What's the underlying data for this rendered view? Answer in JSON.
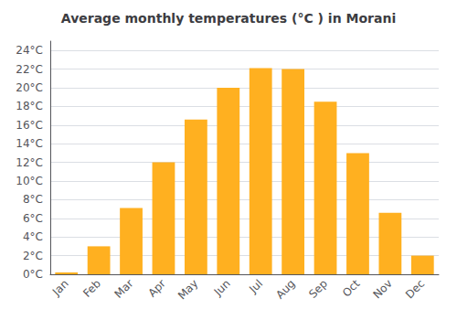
{
  "chart_data": {
    "type": "bar",
    "title": "Average monthly temperatures (°C ) in Morani",
    "categories": [
      "Jan",
      "Feb",
      "Mar",
      "Apr",
      "May",
      "Jun",
      "Jul",
      "Aug",
      "Sep",
      "Oct",
      "Nov",
      "Dec"
    ],
    "values": [
      0.2,
      3.0,
      7.1,
      12.0,
      16.6,
      20.0,
      22.1,
      22.0,
      18.5,
      13.0,
      6.6,
      2.0
    ],
    "color": "#FFB020",
    "ylim": [
      0,
      25
    ],
    "yticks": [
      {
        "value": 0,
        "label": "0°C"
      },
      {
        "value": 2,
        "label": "2°C"
      },
      {
        "value": 4,
        "label": "4°C"
      },
      {
        "value": 6,
        "label": "6°C"
      },
      {
        "value": 8,
        "label": "8°C"
      },
      {
        "value": 10,
        "label": "10°C"
      },
      {
        "value": 12,
        "label": "12°C"
      },
      {
        "value": 14,
        "label": "14°C"
      },
      {
        "value": 16,
        "label": "16°C"
      },
      {
        "value": 18,
        "label": "18°C"
      },
      {
        "value": 20,
        "label": "20°C"
      },
      {
        "value": 22,
        "label": "22°C"
      },
      {
        "value": 24,
        "label": "24°C"
      }
    ],
    "grid": true
  }
}
